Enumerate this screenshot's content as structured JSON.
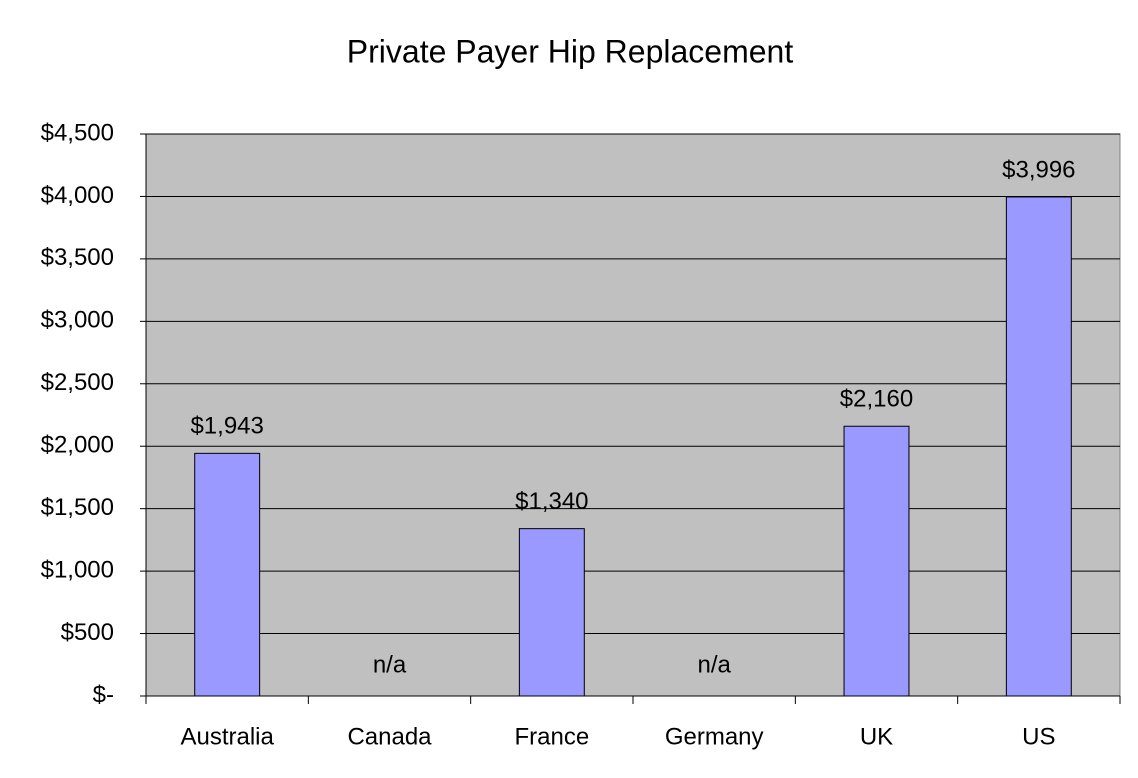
{
  "chart_data": {
    "type": "bar",
    "title": "Private Payer Hip Replacement",
    "categories": [
      "Australia",
      "Canada",
      "France",
      "Germany",
      "UK",
      "US"
    ],
    "values": [
      1943,
      null,
      1340,
      null,
      2160,
      3996
    ],
    "value_labels": [
      "$1,943",
      "n/a",
      "$1,340",
      "n/a",
      "$2,160",
      "$3,996"
    ],
    "color": "#9999ff",
    "ylim": [
      0,
      4500
    ],
    "yticks": [
      {
        "value": 0,
        "label": "$-"
      },
      {
        "value": 500,
        "label": "$500"
      },
      {
        "value": 1000,
        "label": "$1,000"
      },
      {
        "value": 1500,
        "label": "$1,500"
      },
      {
        "value": 2000,
        "label": "$2,000"
      },
      {
        "value": 2500,
        "label": "$2,500"
      },
      {
        "value": 3000,
        "label": "$3,000"
      },
      {
        "value": 3500,
        "label": "$3,500"
      },
      {
        "value": 4000,
        "label": "$4,000"
      },
      {
        "value": 4500,
        "label": "$4,500"
      }
    ],
    "grid": true
  }
}
